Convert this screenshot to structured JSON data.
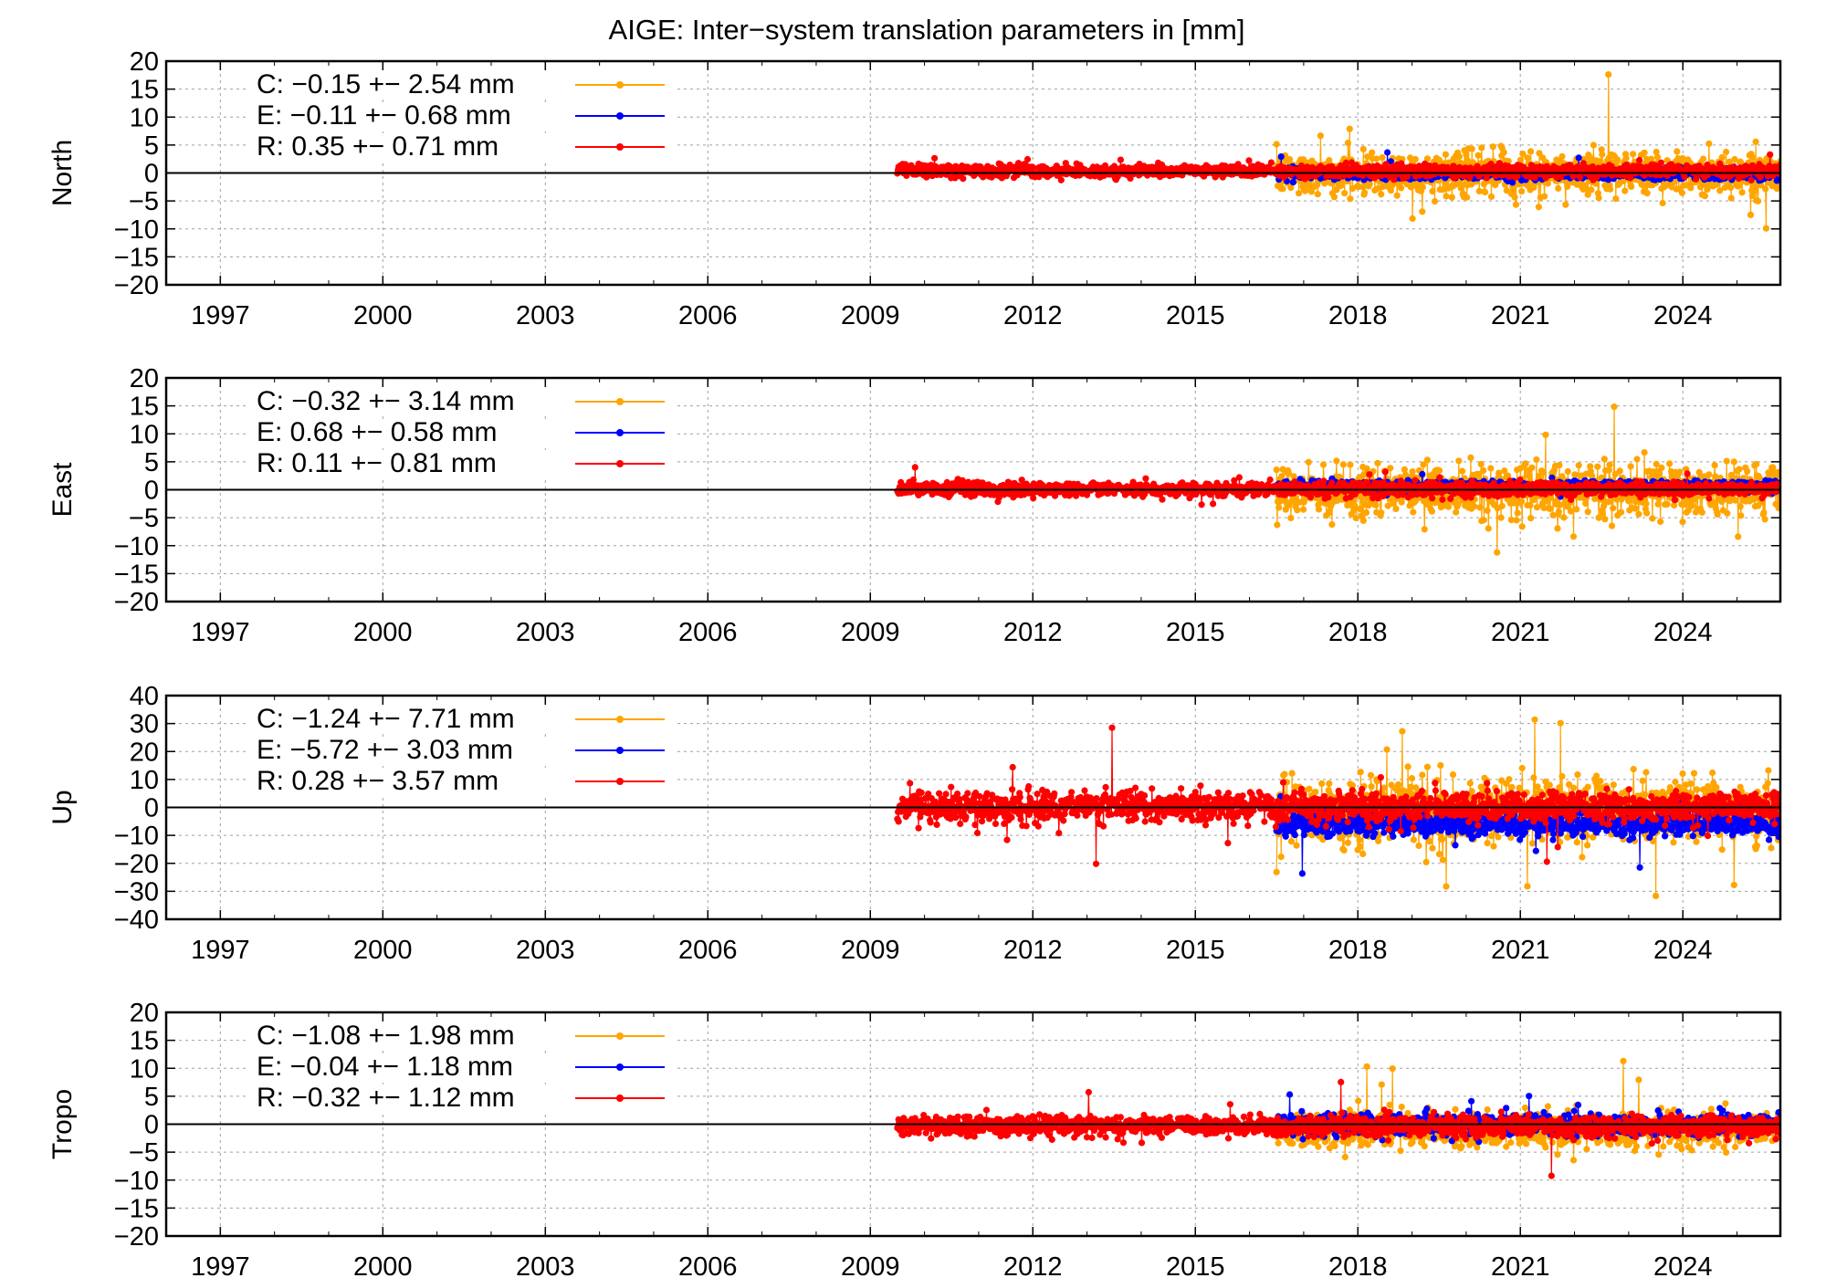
{
  "page": {
    "background": "#ffffff"
  },
  "chart_data": {
    "type": "scatter",
    "title": "AIGE: Inter−system translation parameters in [mm]",
    "x_ticks": [
      "1997",
      "2000",
      "2003",
      "2006",
      "2009",
      "2012",
      "2015",
      "2018",
      "2021",
      "2024"
    ],
    "xlim": [
      1996,
      2025.8
    ],
    "grid": true,
    "legend_placement": "top-left",
    "series_colors": {
      "C": "#ffa500",
      "E": "#0000ff",
      "R": "#ff0000"
    },
    "panels": [
      {
        "ylabel": "North",
        "ylim": [
          -20,
          20
        ],
        "y_ticks": [
          "20",
          "15",
          "10",
          "5",
          "0",
          "−5",
          "−10",
          "−15",
          "−20"
        ],
        "legend": [
          {
            "key": "C",
            "label": "C:  −0.15 +− 2.54 mm"
          },
          {
            "key": "E",
            "label": "E:  −0.11 +− 0.68 mm"
          },
          {
            "key": "R",
            "label": "R:   0.35 +− 0.71 mm"
          }
        ],
        "series": [
          {
            "key": "C",
            "start": 2016.5,
            "end": 2025.8,
            "mean": -0.15,
            "sd": 2.54
          },
          {
            "key": "E",
            "start": 2016.5,
            "end": 2025.8,
            "mean": -0.11,
            "sd": 0.68
          },
          {
            "key": "R",
            "start": 2009.5,
            "end": 2025.8,
            "mean": 0.35,
            "sd": 0.71
          }
        ]
      },
      {
        "ylabel": "East",
        "ylim": [
          -20,
          20
        ],
        "y_ticks": [
          "20",
          "15",
          "10",
          "5",
          "0",
          "−5",
          "−10",
          "−15",
          "−20"
        ],
        "legend": [
          {
            "key": "C",
            "label": "C:  −0.32 +− 3.14 mm"
          },
          {
            "key": "E",
            "label": "E:   0.68 +− 0.58 mm"
          },
          {
            "key": "R",
            "label": "R:   0.11 +− 0.81 mm"
          }
        ],
        "series": [
          {
            "key": "C",
            "start": 2016.5,
            "end": 2025.8,
            "mean": -0.32,
            "sd": 3.14
          },
          {
            "key": "E",
            "start": 2016.5,
            "end": 2025.8,
            "mean": 0.68,
            "sd": 0.58
          },
          {
            "key": "R",
            "start": 2009.5,
            "end": 2025.8,
            "mean": 0.11,
            "sd": 0.81
          }
        ]
      },
      {
        "ylabel": "Up",
        "ylim": [
          -40,
          40
        ],
        "y_ticks": [
          "40",
          "30",
          "20",
          "10",
          "0",
          "−10",
          "−20",
          "−30",
          "−40"
        ],
        "legend": [
          {
            "key": "C",
            "label": "C:  −1.24 +− 7.71 mm"
          },
          {
            "key": "E",
            "label": "E:  −5.72 +− 3.03 mm"
          },
          {
            "key": "R",
            "label": "R:   0.28 +− 3.57 mm"
          }
        ],
        "series": [
          {
            "key": "C",
            "start": 2016.5,
            "end": 2025.8,
            "mean": -1.24,
            "sd": 7.71
          },
          {
            "key": "E",
            "start": 2016.5,
            "end": 2025.8,
            "mean": -5.72,
            "sd": 3.03
          },
          {
            "key": "R",
            "start": 2009.5,
            "end": 2025.8,
            "mean": 0.28,
            "sd": 3.57
          }
        ]
      },
      {
        "ylabel": "Tropo",
        "ylim": [
          -20,
          20
        ],
        "y_ticks": [
          "20",
          "15",
          "10",
          "5",
          "0",
          "−5",
          "−10",
          "−15",
          "−20"
        ],
        "legend": [
          {
            "key": "C",
            "label": "C:  −1.08 +− 1.98 mm"
          },
          {
            "key": "E",
            "label": "E:  −0.04 +− 1.18 mm"
          },
          {
            "key": "R",
            "label": "R:  −0.32 +− 1.12 mm"
          }
        ],
        "series": [
          {
            "key": "C",
            "start": 2016.5,
            "end": 2025.8,
            "mean": -1.08,
            "sd": 1.98
          },
          {
            "key": "E",
            "start": 2016.5,
            "end": 2025.8,
            "mean": -0.04,
            "sd": 1.18
          },
          {
            "key": "R",
            "start": 2009.5,
            "end": 2025.8,
            "mean": -0.32,
            "sd": 1.12
          }
        ]
      }
    ]
  }
}
